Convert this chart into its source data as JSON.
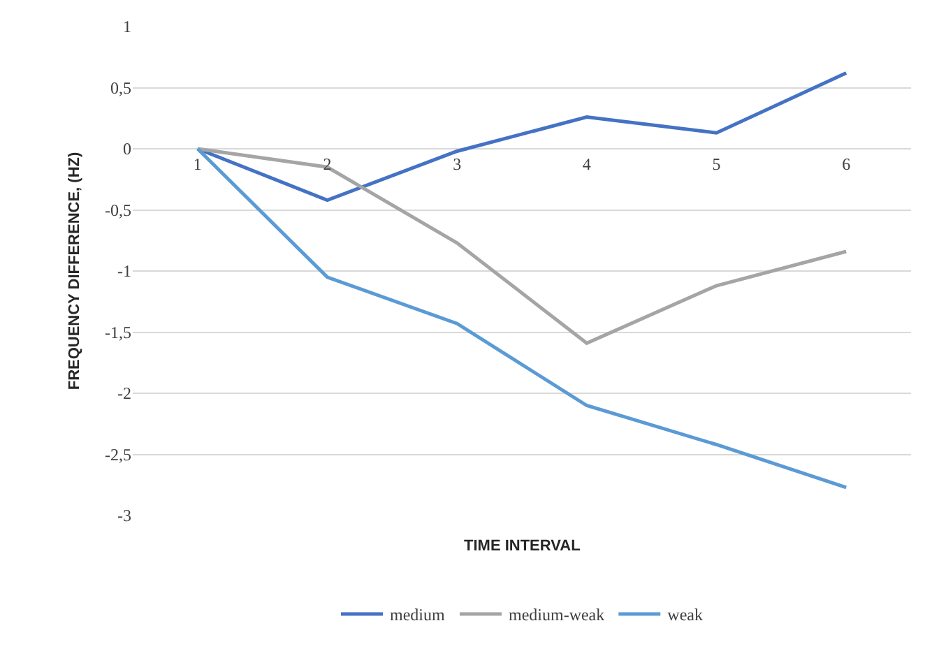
{
  "chart_data": {
    "type": "line",
    "xlabel": "TIME INTERVAL",
    "ylabel": "FREQUENCY DIFFERENCE, (HZ)",
    "categories": [
      "1",
      "2",
      "3",
      "4",
      "5",
      "6"
    ],
    "series": [
      {
        "name": "medium",
        "color": "#4472c4",
        "values": [
          0,
          -0.42,
          -0.02,
          0.26,
          0.13,
          0.62
        ]
      },
      {
        "name": "medium-weak",
        "color": "#a5a5a5",
        "values": [
          0,
          -0.15,
          -0.77,
          -1.59,
          -1.12,
          -0.84
        ]
      },
      {
        "name": "weak",
        "color": "#5b9bd5",
        "values": [
          0,
          -1.05,
          -1.43,
          -2.1,
          -2.42,
          -2.77
        ]
      }
    ],
    "ylim": [
      -3,
      1
    ],
    "yticks": [
      {
        "value": -3,
        "label": "-3"
      },
      {
        "value": -2.5,
        "label": "-2,5"
      },
      {
        "value": -2,
        "label": "-2"
      },
      {
        "value": -1.5,
        "label": "-1,5"
      },
      {
        "value": -1,
        "label": "-1"
      },
      {
        "value": -0.5,
        "label": "-0,5"
      },
      {
        "value": 0,
        "label": "0"
      },
      {
        "value": 0.5,
        "label": "0,5"
      },
      {
        "value": 1,
        "label": "1"
      }
    ],
    "grid": "y",
    "legend": "bottom",
    "marker": "none",
    "line_style": "solid"
  }
}
